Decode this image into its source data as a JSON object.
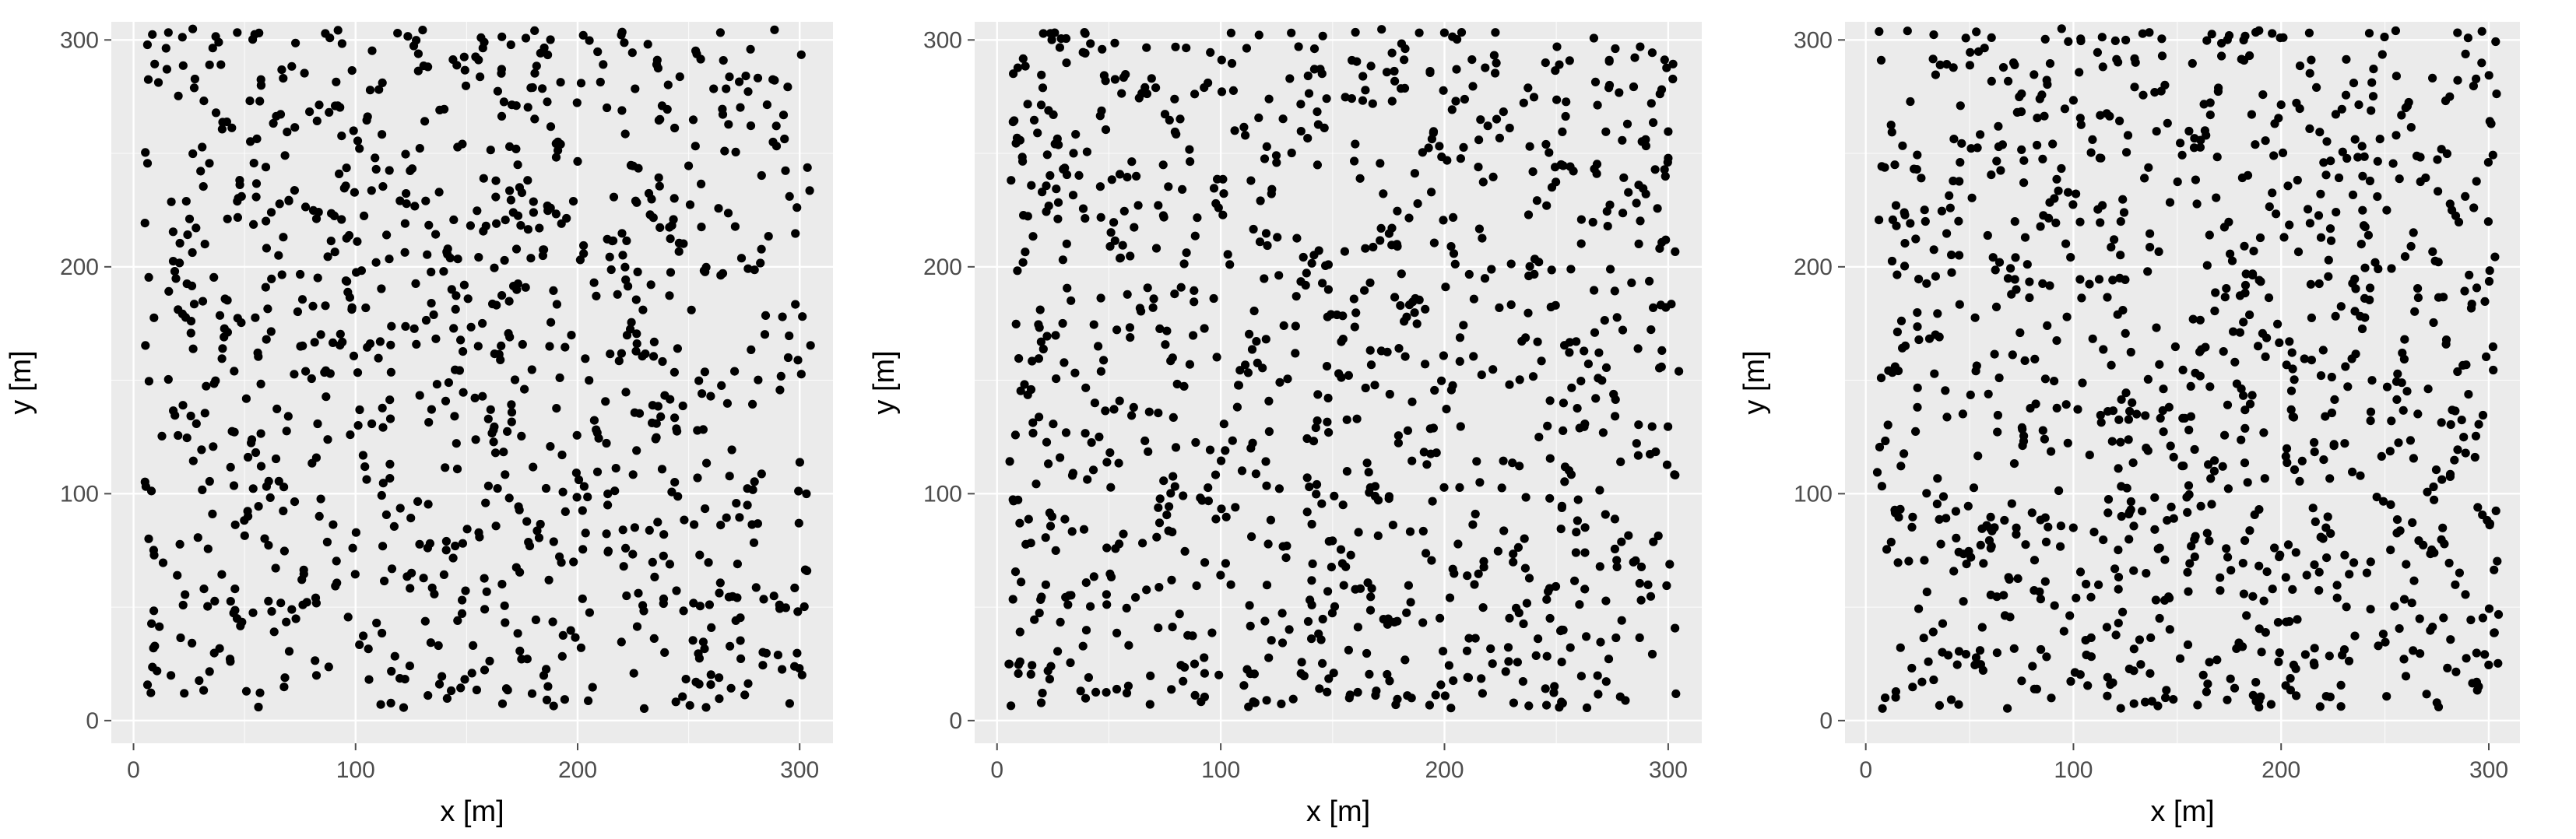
{
  "figure": {
    "panel_bg": "#EBEBEB",
    "grid_major": "#FFFFFF",
    "point_color": "#000000",
    "tick_color": "#4D4D4D",
    "label_color": "#000000"
  },
  "chart_data": [
    {
      "type": "scatter",
      "panel": "left",
      "title": "",
      "xlabel": "x [m]",
      "ylabel": "y [m]",
      "xlim": [
        -10,
        315
      ],
      "ylim": [
        -10,
        308
      ],
      "xticks": [
        0,
        100,
        200,
        300
      ],
      "yticks": [
        0,
        100,
        200,
        300
      ],
      "xtick_labels": [
        "0",
        "100",
        "200",
        "300"
      ],
      "ytick_labels": [
        "0",
        "100",
        "200",
        "300"
      ],
      "grid": true,
      "n_points": 1000,
      "seed": 7
    },
    {
      "type": "scatter",
      "panel": "middle",
      "title": "",
      "xlabel": "x [m]",
      "ylabel": "y [m]",
      "xlim": [
        -10,
        315
      ],
      "ylim": [
        -10,
        308
      ],
      "xticks": [
        0,
        100,
        200,
        300
      ],
      "yticks": [
        0,
        100,
        200,
        300
      ],
      "xtick_labels": [
        "0",
        "100",
        "200",
        "300"
      ],
      "ytick_labels": [
        "0",
        "100",
        "200",
        "300"
      ],
      "grid": true,
      "n_points": 1000,
      "seed": 23
    },
    {
      "type": "scatter",
      "panel": "right",
      "title": "",
      "xlabel": "x [m]",
      "ylabel": "y [m]",
      "xlim": [
        -10,
        315
      ],
      "ylim": [
        -10,
        308
      ],
      "xticks": [
        0,
        100,
        200,
        300
      ],
      "yticks": [
        0,
        100,
        200,
        300
      ],
      "xtick_labels": [
        "0",
        "100",
        "200",
        "300"
      ],
      "ytick_labels": [
        "0",
        "100",
        "200",
        "300"
      ],
      "grid": true,
      "n_points": 1000,
      "seed": 91
    }
  ]
}
